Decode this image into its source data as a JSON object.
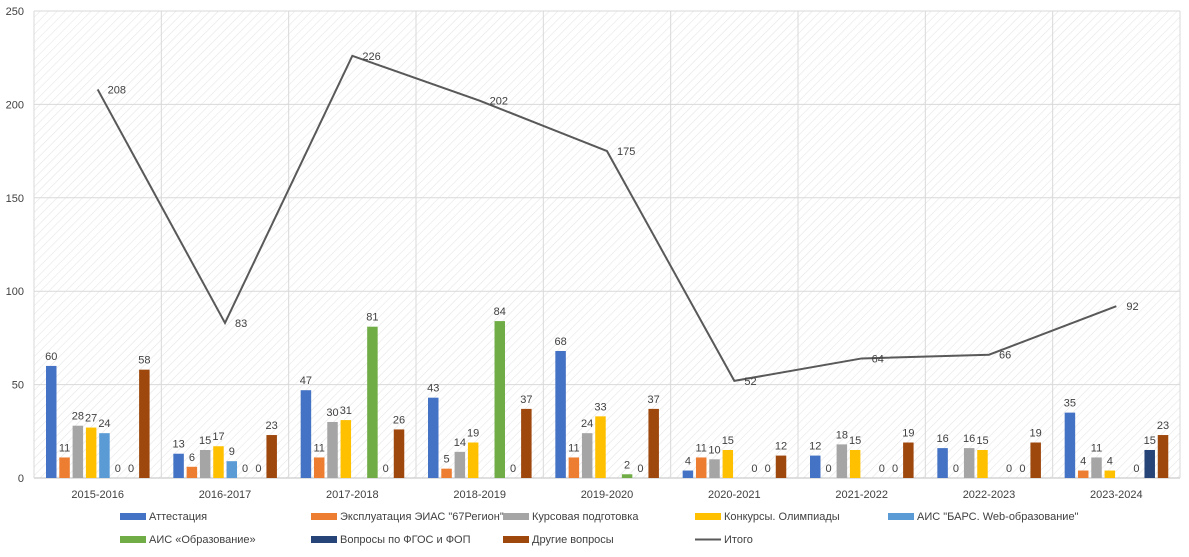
{
  "chart_data": {
    "type": "bar",
    "categories": [
      "2015-2016",
      "2016-2017",
      "2017-2018",
      "2018-2019",
      "2019-2020",
      "2020-2021",
      "2021-2022",
      "2022-2023",
      "2023-2024"
    ],
    "ylim": [
      0,
      250
    ],
    "yticks": [
      0,
      50,
      100,
      150,
      200,
      250
    ],
    "grid": true,
    "legend_position": "bottom",
    "series": [
      {
        "name": "Аттестация",
        "color": "#4472C4",
        "values": [
          60,
          13,
          47,
          43,
          68,
          4,
          12,
          16,
          35
        ]
      },
      {
        "name": "Эксплуатация ЭИАС \"67Регион\"",
        "color": "#ED7D31",
        "values": [
          11,
          6,
          11,
          5,
          11,
          11,
          0,
          0,
          4
        ]
      },
      {
        "name": "Курсовая подготовка",
        "color": "#A5A5A5",
        "values": [
          28,
          15,
          30,
          14,
          24,
          10,
          18,
          16,
          11
        ]
      },
      {
        "name": "Конкурсы. Олимпиады",
        "color": "#FFC000",
        "values": [
          27,
          17,
          31,
          19,
          33,
          15,
          15,
          15,
          4
        ]
      },
      {
        "name": "АИС \"БАРС. Web-образование\"",
        "color": "#5B9BD5",
        "values": [
          24,
          9,
          null,
          null,
          null,
          null,
          null,
          null,
          null
        ]
      },
      {
        "name": "АИС «Образование»",
        "color": "#70AD47",
        "values": [
          0,
          0,
          81,
          84,
          2,
          0,
          0,
          0,
          0
        ]
      },
      {
        "name": "Вопросы по ФГОС и ФОП",
        "color": "#264478",
        "values": [
          0,
          0,
          0,
          0,
          0,
          0,
          0,
          0,
          15
        ]
      },
      {
        "name": "Другие вопросы",
        "color": "#9E480E",
        "values": [
          58,
          23,
          26,
          37,
          37,
          12,
          19,
          19,
          23
        ]
      }
    ],
    "line_series": {
      "name": "Итого",
      "color": "#595959",
      "values": [
        208,
        83,
        226,
        202,
        175,
        52,
        64,
        66,
        92
      ]
    }
  }
}
